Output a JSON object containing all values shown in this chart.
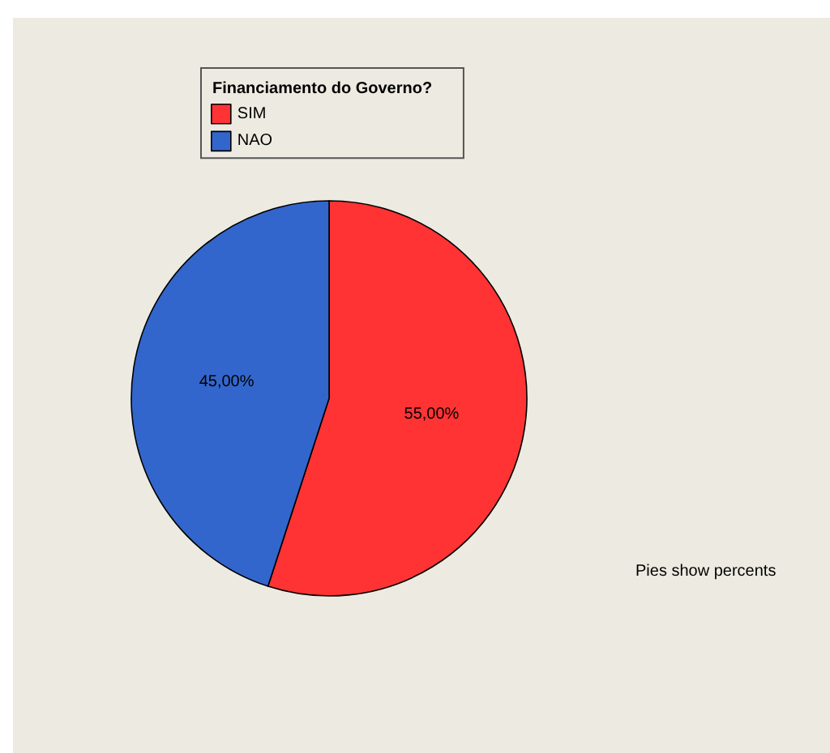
{
  "chart_data": {
    "type": "pie",
    "categories": [
      "SIM",
      "NAO"
    ],
    "values": [
      55,
      45
    ],
    "colors": [
      "#ff3333",
      "#3366cc"
    ],
    "value_labels": [
      "55,00%",
      "45,00%"
    ],
    "legend_title": "Financiamento do Governo?",
    "legend": "top left",
    "annotations": [
      "Pies show percents"
    ]
  }
}
